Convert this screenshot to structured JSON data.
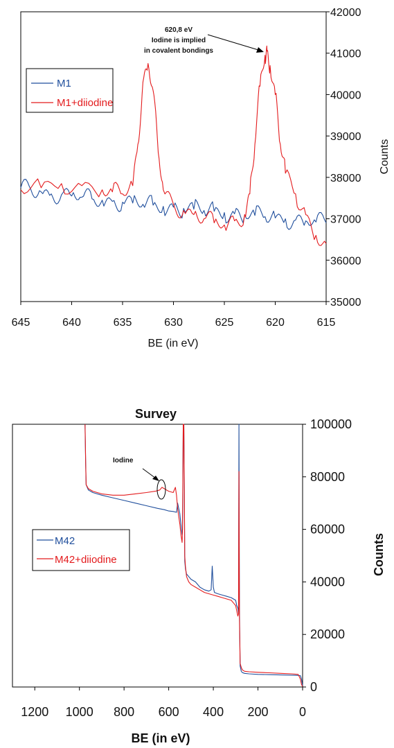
{
  "chart_data": [
    {
      "type": "line",
      "title": "",
      "xlabel": "BE (in eV)",
      "ylabel": "Counts",
      "xlim": [
        645,
        615
      ],
      "ylim": [
        35000,
        42000
      ],
      "x_reversed": true,
      "y_axis_position": "right",
      "xticks": [
        "645",
        "640",
        "635",
        "630",
        "625",
        "620",
        "615"
      ],
      "yticks": [
        "35000",
        "36000",
        "37000",
        "38000",
        "39000",
        "40000",
        "41000",
        "42000"
      ],
      "legend_position": "left",
      "grid": false,
      "annotation": [
        "620,8 eV",
        "Iodine is implied",
        "in covalent bondings"
      ],
      "series": [
        {
          "name": "M1",
          "color": "#1f4e9c",
          "x": [
            645,
            644,
            643,
            642,
            641,
            640,
            639,
            638,
            637,
            636,
            635,
            634,
            633,
            632,
            631,
            630,
            629,
            628,
            627,
            626,
            625,
            624,
            623,
            622,
            621,
            620,
            619,
            618,
            617,
            616,
            615
          ],
          "y": [
            37750,
            37700,
            37650,
            37600,
            37580,
            37550,
            37520,
            37480,
            37450,
            37420,
            37400,
            37380,
            37350,
            37330,
            37300,
            37280,
            37250,
            37230,
            37200,
            37180,
            37150,
            37120,
            37100,
            37080,
            37050,
            37020,
            37000,
            36970,
            36950,
            36920,
            36900
          ]
        },
        {
          "name": "M1+diiodine",
          "color": "#e31a1c",
          "x": [
            645,
            643,
            641,
            639,
            637,
            636,
            635,
            634,
            633.5,
            633,
            632.5,
            632,
            631.5,
            631,
            630,
            629,
            628,
            627,
            626,
            625,
            624,
            623,
            622.5,
            622,
            621.5,
            621,
            620.8,
            620.5,
            620,
            619.5,
            619,
            618,
            617,
            616,
            615
          ],
          "y": [
            37700,
            37750,
            37850,
            37800,
            37700,
            37650,
            37600,
            37800,
            38800,
            40300,
            40750,
            40100,
            38600,
            37700,
            37350,
            37200,
            37100,
            37000,
            36900,
            36850,
            36950,
            37100,
            37600,
            38800,
            40200,
            40950,
            41050,
            40700,
            40000,
            38800,
            38100,
            37600,
            37100,
            36600,
            36400
          ]
        }
      ]
    },
    {
      "type": "line",
      "title": "Survey",
      "xlabel": "BE (in eV)",
      "ylabel": "Counts",
      "xlim": [
        1300,
        0
      ],
      "ylim": [
        0,
        100000
      ],
      "x_reversed": true,
      "y_axis_position": "right",
      "xticks": [
        "1200",
        "1000",
        "800",
        "600",
        "400",
        "200",
        "0"
      ],
      "yticks": [
        "0",
        "20000",
        "40000",
        "60000",
        "80000",
        "100000"
      ],
      "legend_position": "left",
      "grid": false,
      "annotation": [
        "Iodine"
      ],
      "series": [
        {
          "name": "M42",
          "color": "#1f4e9c",
          "x": [
            975,
            972,
            970,
            960,
            940,
            900,
            850,
            800,
            750,
            700,
            650,
            620,
            600,
            580,
            565,
            560,
            550,
            545,
            540,
            538,
            535,
            532,
            530,
            528,
            525,
            520,
            510,
            500,
            480,
            460,
            440,
            420,
            410,
            405,
            400,
            395,
            380,
            360,
            340,
            320,
            310,
            300,
            295,
            290,
            287,
            285,
            283,
            280,
            275,
            270,
            260,
            240,
            200,
            150,
            100,
            50,
            20,
            10,
            5,
            0
          ],
          "y": [
            100000,
            85000,
            77000,
            75000,
            74000,
            73000,
            72000,
            71000,
            70000,
            69000,
            68000,
            67500,
            67000,
            66800,
            66500,
            70000,
            66000,
            62000,
            58000,
            60000,
            100000,
            100000,
            75000,
            48000,
            45000,
            43000,
            42000,
            41000,
            40000,
            38000,
            37000,
            36500,
            37000,
            46000,
            38000,
            36000,
            35500,
            35000,
            34500,
            34000,
            33500,
            33000,
            31000,
            30000,
            28000,
            100000,
            30000,
            8000,
            6000,
            5500,
            5200,
            5000,
            4800,
            4700,
            4600,
            4500,
            4400,
            4300,
            3000,
            500
          ]
        },
        {
          "name": "M42+diiodine",
          "color": "#e31a1c",
          "x": [
            975,
            972,
            970,
            960,
            940,
            900,
            850,
            800,
            750,
            700,
            660,
            640,
            630,
            620,
            610,
            600,
            580,
            570,
            565,
            560,
            550,
            545,
            540,
            538,
            535,
            532,
            530,
            528,
            525,
            520,
            510,
            500,
            480,
            460,
            440,
            420,
            400,
            380,
            360,
            340,
            320,
            310,
            300,
            295,
            290,
            287,
            285,
            283,
            280,
            275,
            270,
            260,
            240,
            200,
            150,
            100,
            50,
            20,
            10,
            5,
            0
          ],
          "y": [
            100000,
            86000,
            77000,
            75500,
            74500,
            73500,
            73000,
            73000,
            73500,
            74000,
            74500,
            75000,
            76000,
            75500,
            75000,
            74500,
            74000,
            76000,
            73000,
            68000,
            62000,
            58000,
            55000,
            60000,
            100000,
            100000,
            76000,
            50000,
            46000,
            42000,
            40000,
            39000,
            38000,
            37000,
            36000,
            35500,
            35000,
            34500,
            34000,
            33500,
            33000,
            32000,
            31000,
            29000,
            27000,
            28000,
            82000,
            26000,
            9000,
            7500,
            6500,
            6000,
            5800,
            5600,
            5400,
            5200,
            5000,
            4800,
            3000,
            1000,
            200
          ]
        }
      ]
    }
  ]
}
